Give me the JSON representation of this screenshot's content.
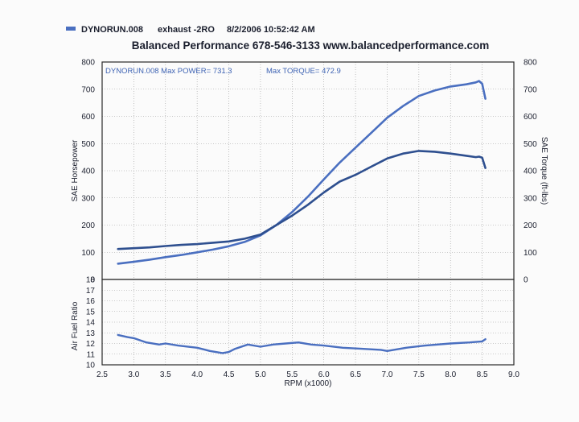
{
  "legend": {
    "run_name": "DYNORUN.008",
    "run_desc": "exhaust -2RO",
    "run_date": "8/2/2006 10:52:42 AM",
    "swatch_color": "#4a6fc0"
  },
  "header": {
    "title": "Balanced Performance 678-546-3133 www.balancedperformance.com"
  },
  "annotations": {
    "max_power": "DYNORUN.008  Max POWER= 731.3",
    "max_torque": "Max TORQUE= 472.9"
  },
  "chart_data": [
    {
      "type": "line",
      "title": "Balanced Performance 678-546-3133 www.balancedperformance.com",
      "xlabel": "RPM (x1000)",
      "ylabel": "SAE Horsepower",
      "y2label": "SAE Torque (ft-lbs)",
      "xlim": [
        2.5,
        9.0
      ],
      "ylim": [
        0,
        800
      ],
      "y2lim": [
        0,
        800
      ],
      "x_ticks": [
        "2.5",
        "3.0",
        "3.5",
        "4.0",
        "4.5",
        "5.0",
        "5.5",
        "6.0",
        "6.5",
        "7.0",
        "7.5",
        "8.0",
        "8.5",
        "9.0"
      ],
      "y_ticks": [
        "800",
        "700",
        "600",
        "500",
        "400",
        "300",
        "200",
        "100",
        "0"
      ],
      "y2_ticks": [
        "800",
        "700",
        "600",
        "500",
        "400",
        "300",
        "200",
        "100",
        "0"
      ],
      "grid": true,
      "series": [
        {
          "name": "SAE Horsepower",
          "color": "#4a6fc0",
          "x": [
            2.75,
            3.0,
            3.25,
            3.5,
            3.75,
            4.0,
            4.25,
            4.5,
            4.75,
            5.0,
            5.25,
            5.5,
            5.75,
            6.0,
            6.25,
            6.5,
            6.75,
            7.0,
            7.25,
            7.5,
            7.75,
            8.0,
            8.25,
            8.4,
            8.45,
            8.5,
            8.55
          ],
          "values": [
            58,
            65,
            73,
            82,
            90,
            100,
            110,
            122,
            138,
            162,
            200,
            248,
            305,
            368,
            430,
            485,
            540,
            595,
            638,
            675,
            695,
            710,
            718,
            725,
            730,
            720,
            665
          ]
        },
        {
          "name": "SAE Torque (ft-lbs)",
          "color": "#2e4f8f",
          "x": [
            2.75,
            3.0,
            3.25,
            3.5,
            3.75,
            4.0,
            4.25,
            4.5,
            4.75,
            5.0,
            5.25,
            5.5,
            5.75,
            6.0,
            6.25,
            6.5,
            6.75,
            7.0,
            7.25,
            7.5,
            7.75,
            8.0,
            8.25,
            8.4,
            8.45,
            8.5,
            8.55
          ],
          "values": [
            112,
            115,
            118,
            123,
            127,
            130,
            135,
            140,
            150,
            165,
            200,
            235,
            275,
            320,
            360,
            385,
            415,
            445,
            463,
            473,
            470,
            463,
            455,
            450,
            452,
            448,
            410
          ]
        }
      ]
    },
    {
      "type": "line",
      "xlabel": "RPM (x1000)",
      "ylabel": "Air Fuel Ratio",
      "xlim": [
        2.5,
        9.0
      ],
      "ylim": [
        10,
        18
      ],
      "y_ticks": [
        "18",
        "17",
        "16",
        "15",
        "14",
        "13",
        "12",
        "11",
        "10"
      ],
      "grid": true,
      "series": [
        {
          "color": "#4a6fc0",
          "x": [
            2.75,
            2.9,
            3.0,
            3.2,
            3.4,
            3.5,
            3.7,
            4.0,
            4.2,
            4.4,
            4.5,
            4.6,
            4.8,
            5.0,
            5.2,
            5.4,
            5.6,
            5.8,
            6.0,
            6.3,
            6.6,
            6.9,
            7.0,
            7.3,
            7.6,
            8.0,
            8.3,
            8.5,
            8.55
          ],
          "values": [
            12.8,
            12.6,
            12.5,
            12.1,
            11.9,
            12.0,
            11.8,
            11.6,
            11.3,
            11.1,
            11.2,
            11.5,
            11.9,
            11.7,
            11.9,
            12.0,
            12.1,
            11.9,
            11.8,
            11.6,
            11.5,
            11.4,
            11.3,
            11.6,
            11.8,
            12.0,
            12.1,
            12.2,
            12.4
          ]
        }
      ]
    }
  ]
}
